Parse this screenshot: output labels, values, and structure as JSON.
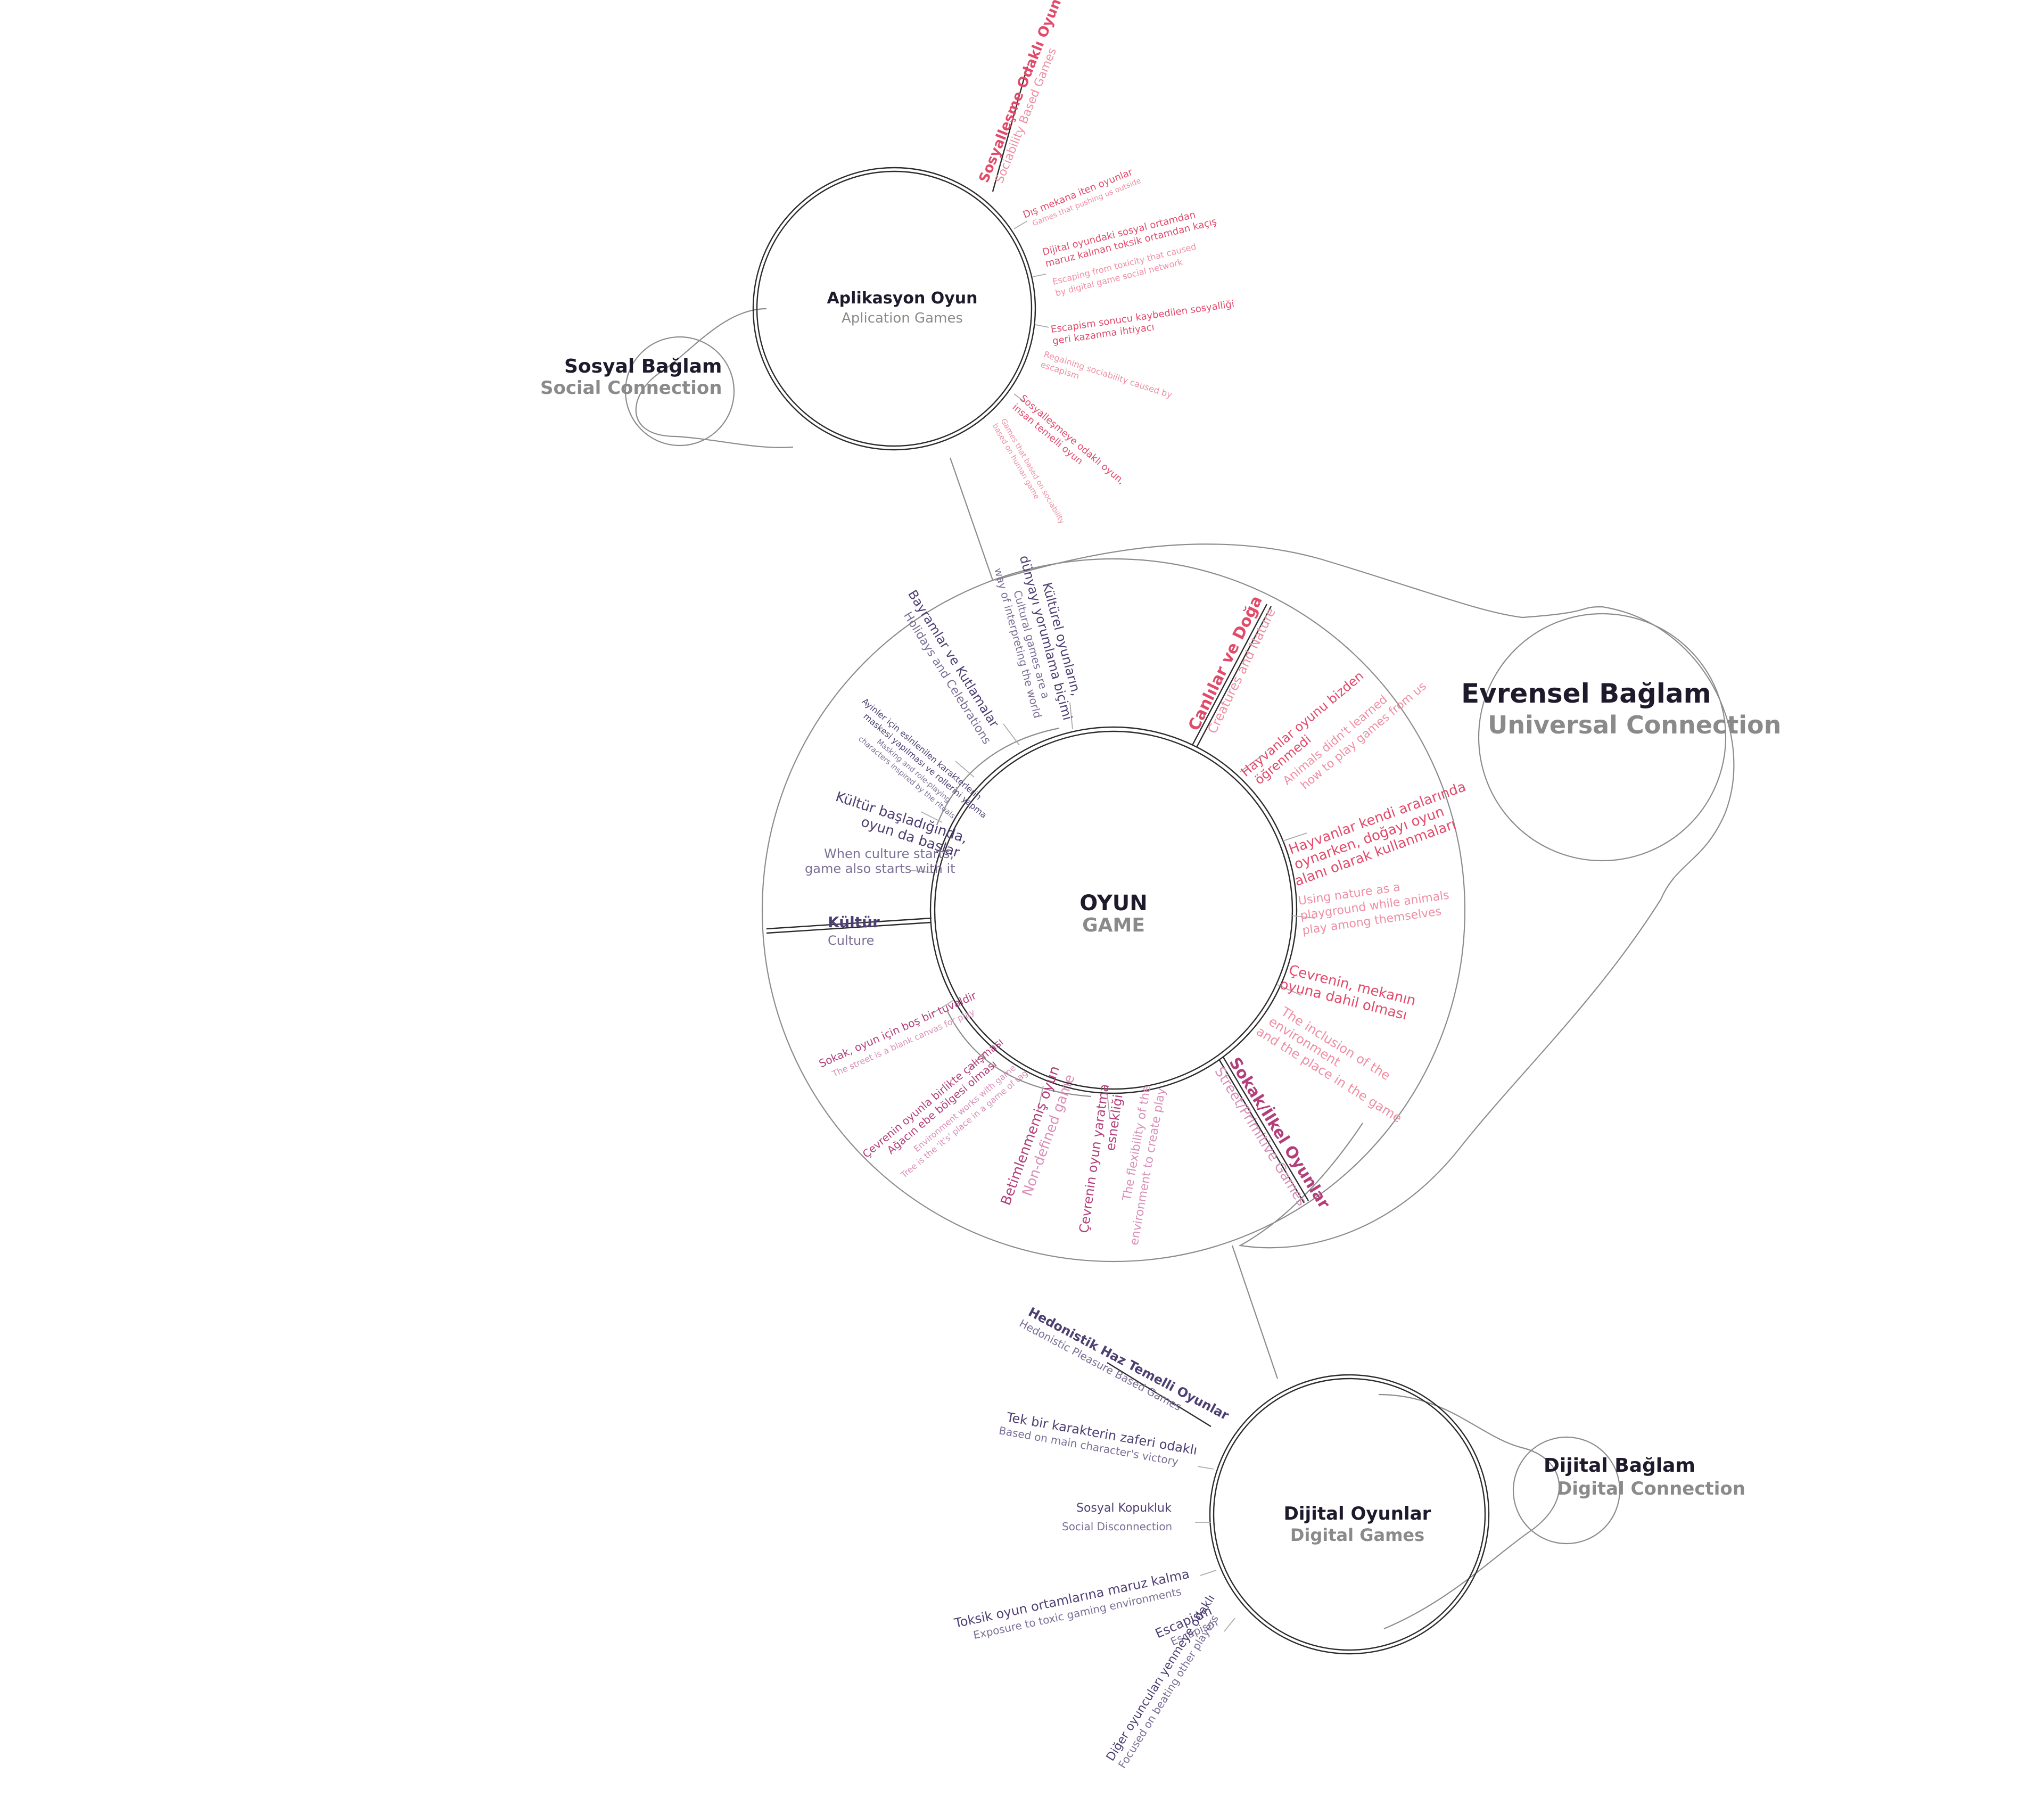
{
  "center": {
    "title": "OYUN",
    "subtitle": "GAME"
  },
  "universal": {
    "title": "Evrensel Bağlam",
    "subtitle": "Universal Connection"
  },
  "social": {
    "title": "Sosyal Bağlam",
    "subtitle": "Social Connection"
  },
  "digital_ctx": {
    "title": "Dijital Bağlam",
    "subtitle": "Digital Connection"
  },
  "app": {
    "title": "Aplikasyon Oyun",
    "subtitle": "Aplication Games"
  },
  "digital": {
    "title": "Dijital Oyunlar",
    "subtitle": "Digital Games"
  },
  "culture": {
    "heading": "Kültür",
    "heading_en": "Culture",
    "l1_tr": "Kültürel oyunların,",
    "l1_tr2": "dünyayı yorumlama biçimi",
    "l1_en": "Cultural games are a",
    "l1_en2": "way of interpreting the world",
    "l2_tr": "Bayramlar ve Kutlamalar",
    "l2_en": "Holidays and Celebrations",
    "l3_tr": "Ayinler için esinlenilen karakterlerin",
    "l3_tr2": "maskesi yapılması ve rollerini yapma",
    "l3_en": "Masking and role-playing",
    "l3_en2": "characters inspired by the rituals",
    "l4_tr": "Kültür başladığında,",
    "l4_tr2": "oyun da başlar",
    "l4_en": "When culture starts,",
    "l4_en2": "game also starts with it"
  },
  "nature": {
    "heading": "Canlılar ve Doğa",
    "heading_en": "Creatures and Nature",
    "l1_tr": "Hayvanlar oyunu bizden",
    "l1_tr2": "öğrenmedi",
    "l1_en": "Animals didn't learned",
    "l1_en2": "how to play games from us",
    "l2_tr": "Hayvanlar kendi aralarında",
    "l2_tr2": "oynarken, doğayı oyun",
    "l2_tr3": "alanı olarak kullanmaları",
    "l2_en": "Using nature as a",
    "l2_en2": "playground while animals",
    "l2_en3": "play among themselves",
    "l3_tr": "Çevrenin, mekanın",
    "l3_tr2": "oyuna dahil olması",
    "l3_en": "The inclusion of the",
    "l3_en2": "environment",
    "l3_en3": "and the place in the game"
  },
  "street": {
    "heading": "Sokak/İlkel Oyunlar",
    "heading_en": "Street/Primitive Games",
    "l1_tr": "Sokak, oyun için boş bir tuvaldir",
    "l1_en": "The street is a blank canvas for play",
    "l2_tr": "Çevrenin oyunla birlikte çalışması",
    "l2_tr2": "Ağacın ebe bölgesi olması",
    "l2_en": "Environment works with game",
    "l2_en2": "Tree is the 'it's' place in a game of tag",
    "l3_tr": "Betimlenmemiş oyun",
    "l3_en": "Non-defined game",
    "l4_tr": "Çevrenin oyun yaratma",
    "l4_tr2": "esnekliği",
    "l4_en": "The flexibility of the",
    "l4_en2": "environment to create play"
  },
  "app_branches": {
    "heading": "Sosyalleşme Odaklı Oyunlar",
    "heading_en": "Sociability Based Games",
    "b1_tr": "Dış mekana iten oyunlar",
    "b1_en": "Games that pushing us outside",
    "b2_tr": "Dijital oyundaki sosyal ortamdan",
    "b2_tr2": "maruz kalınan toksik ortamdan kaçış",
    "b2_en": "Escaping from toxicity that caused",
    "b2_en2": "by digital game social network",
    "b3_tr": "Escapism sonucu kaybedilen sosyalliği",
    "b3_tr2": "geri kazanma ihtiyacı",
    "b3_en": "Regaining sociability caused by",
    "b3_en2": "escapism",
    "b4_tr": "Sosyalleşmeye odaklı oyun,",
    "b4_tr2": "insan temelli oyun",
    "b4_en": "Games that based on sociability",
    "b4_en2": "based on human game"
  },
  "digital_branches": {
    "heading": "Hedonistik Haz Temelli Oyunlar",
    "heading_en": "Hedonistic Pleasure Based Games",
    "b1_tr": "Tek bir karakterin zaferi odaklı",
    "b1_en": "Based on main character's victory",
    "b2_tr": "Sosyal Kopukluk",
    "b2_en": "Social Disconnection",
    "b3_tr": "Toksik oyun ortamlarına maruz kalma",
    "b3_en": "Exposure to toxic gaming environments",
    "b4_tr": "Escapism",
    "b4_en": "Escapism",
    "b5_tr": "Diğer oyuncuları yenmeye odaklı",
    "b5_en": "Focused on beating other players"
  },
  "colors": {
    "pink": "#e24a6a",
    "purple": "#4e3f72",
    "mauve": "#b23f7a",
    "line": "#8c8c8c"
  }
}
